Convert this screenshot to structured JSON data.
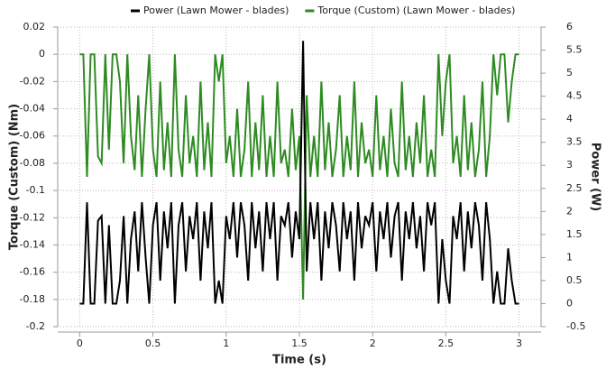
{
  "chart_data": {
    "type": "line",
    "xlabel": "Time (s)",
    "ylabel": "Torque (Custom) (Nm)",
    "y2label": "Power (W)",
    "x": [
      0,
      0.025,
      0.05,
      0.075,
      0.1,
      0.125,
      0.15,
      0.175,
      0.2,
      0.225,
      0.25,
      0.275,
      0.3,
      0.325,
      0.35,
      0.375,
      0.4,
      0.425,
      0.45,
      0.475,
      0.5,
      0.525,
      0.55,
      0.575,
      0.6,
      0.625,
      0.65,
      0.675,
      0.7,
      0.725,
      0.75,
      0.775,
      0.8,
      0.825,
      0.85,
      0.875,
      0.9,
      0.925,
      0.95,
      0.975,
      1,
      1.025,
      1.05,
      1.075,
      1.1,
      1.125,
      1.15,
      1.175,
      1.2,
      1.225,
      1.25,
      1.275,
      1.3,
      1.325,
      1.35,
      1.375,
      1.4,
      1.425,
      1.45,
      1.475,
      1.5,
      1.525,
      1.55,
      1.575,
      1.6,
      1.625,
      1.65,
      1.675,
      1.7,
      1.725,
      1.75,
      1.775,
      1.8,
      1.825,
      1.85,
      1.875,
      1.9,
      1.925,
      1.95,
      1.975,
      2,
      2.025,
      2.05,
      2.075,
      2.1,
      2.125,
      2.15,
      2.175,
      2.2,
      2.225,
      2.25,
      2.275,
      2.3,
      2.325,
      2.35,
      2.375,
      2.4,
      2.425,
      2.45,
      2.475,
      2.5,
      2.525,
      2.55,
      2.575,
      2.6,
      2.625,
      2.65,
      2.675,
      2.7,
      2.725,
      2.75,
      2.775,
      2.8,
      2.825,
      2.85,
      2.875,
      2.9,
      2.925,
      2.95,
      2.975,
      3
    ],
    "series": [
      {
        "name": "Power (Lawn Mower - blades)",
        "color": "#000000",
        "axis": "y2",
        "values": [
          0,
          0,
          2.2,
          0,
          0,
          1.8,
          1.9,
          0,
          1.7,
          0,
          0,
          0.5,
          1.9,
          0,
          1.4,
          2.0,
          0.7,
          2.2,
          1.0,
          0,
          1.7,
          2.2,
          0.5,
          2.0,
          1.2,
          2.2,
          0,
          1.7,
          2.2,
          0.7,
          1.9,
          1.4,
          2.2,
          0.5,
          2.0,
          1.2,
          2.2,
          0,
          0.5,
          0,
          1.9,
          1.4,
          2.2,
          1.0,
          2.2,
          1.7,
          0.5,
          2.2,
          1.2,
          2.0,
          0.7,
          2.2,
          1.4,
          2.2,
          0.5,
          1.9,
          1.7,
          2.2,
          1.0,
          2.0,
          1.4,
          5.7,
          0.7,
          2.2,
          1.4,
          2.2,
          0.5,
          2.0,
          1.2,
          2.2,
          1.7,
          0.7,
          2.2,
          1.4,
          2.0,
          0.5,
          2.2,
          1.2,
          1.9,
          1.7,
          2.2,
          0.7,
          2.0,
          1.4,
          2.2,
          1.0,
          1.9,
          2.2,
          0.5,
          2.0,
          1.4,
          2.2,
          1.2,
          1.9,
          0.7,
          2.2,
          1.7,
          2.2,
          0,
          1.4,
          0.5,
          0,
          1.9,
          1.4,
          2.2,
          0.7,
          2.0,
          1.2,
          2.2,
          1.7,
          0.5,
          2.2,
          1.4,
          0,
          0.7,
          0,
          0,
          1.2,
          0.5,
          0,
          0
        ]
      },
      {
        "name": "Torque (Custom) (Lawn Mower - blades)",
        "color": "#2e8b22",
        "values": [
          0,
          0,
          -0.09,
          0,
          0,
          -0.075,
          -0.08,
          0,
          -0.07,
          0,
          0,
          -0.02,
          -0.08,
          0,
          -0.06,
          -0.085,
          -0.03,
          -0.09,
          -0.04,
          0,
          -0.07,
          -0.09,
          -0.02,
          -0.085,
          -0.05,
          -0.09,
          0,
          -0.07,
          -0.09,
          -0.03,
          -0.08,
          -0.06,
          -0.09,
          -0.02,
          -0.085,
          -0.05,
          -0.09,
          0,
          -0.02,
          0,
          -0.08,
          -0.06,
          -0.09,
          -0.04,
          -0.09,
          -0.07,
          -0.02,
          -0.09,
          -0.05,
          -0.085,
          -0.03,
          -0.09,
          -0.06,
          -0.09,
          -0.02,
          -0.08,
          -0.07,
          -0.09,
          -0.04,
          -0.085,
          -0.06,
          -0.18,
          -0.03,
          -0.09,
          -0.06,
          -0.09,
          -0.02,
          -0.085,
          -0.05,
          -0.09,
          -0.07,
          -0.03,
          -0.09,
          -0.06,
          -0.085,
          -0.02,
          -0.09,
          -0.05,
          -0.08,
          -0.07,
          -0.09,
          -0.03,
          -0.085,
          -0.06,
          -0.09,
          -0.04,
          -0.08,
          -0.09,
          -0.02,
          -0.085,
          -0.06,
          -0.09,
          -0.05,
          -0.08,
          -0.03,
          -0.09,
          -0.07,
          -0.09,
          0,
          -0.06,
          -0.02,
          0,
          -0.08,
          -0.06,
          -0.09,
          -0.03,
          -0.085,
          -0.05,
          -0.09,
          -0.07,
          -0.02,
          -0.09,
          -0.06,
          0,
          -0.03,
          0,
          0,
          -0.05,
          -0.02,
          0,
          0
        ]
      }
    ],
    "xlim": [
      -0.15,
      3.15
    ],
    "xticks": [
      0,
      0.5,
      1,
      1.5,
      2,
      2.5,
      3
    ],
    "ylim": [
      -0.2,
      0.02
    ],
    "yticks": [
      0.02,
      0,
      -0.02,
      -0.04,
      -0.06,
      -0.08,
      -0.1,
      -0.12,
      -0.14,
      -0.16,
      -0.18,
      -0.2
    ],
    "y2lim": [
      -0.5,
      6
    ],
    "y2ticks": [
      6,
      5.5,
      5,
      4.5,
      4,
      3.5,
      3,
      2.5,
      2,
      1.5,
      1,
      0.5,
      0,
      -0.5
    ],
    "grid": true,
    "legend": "top"
  }
}
